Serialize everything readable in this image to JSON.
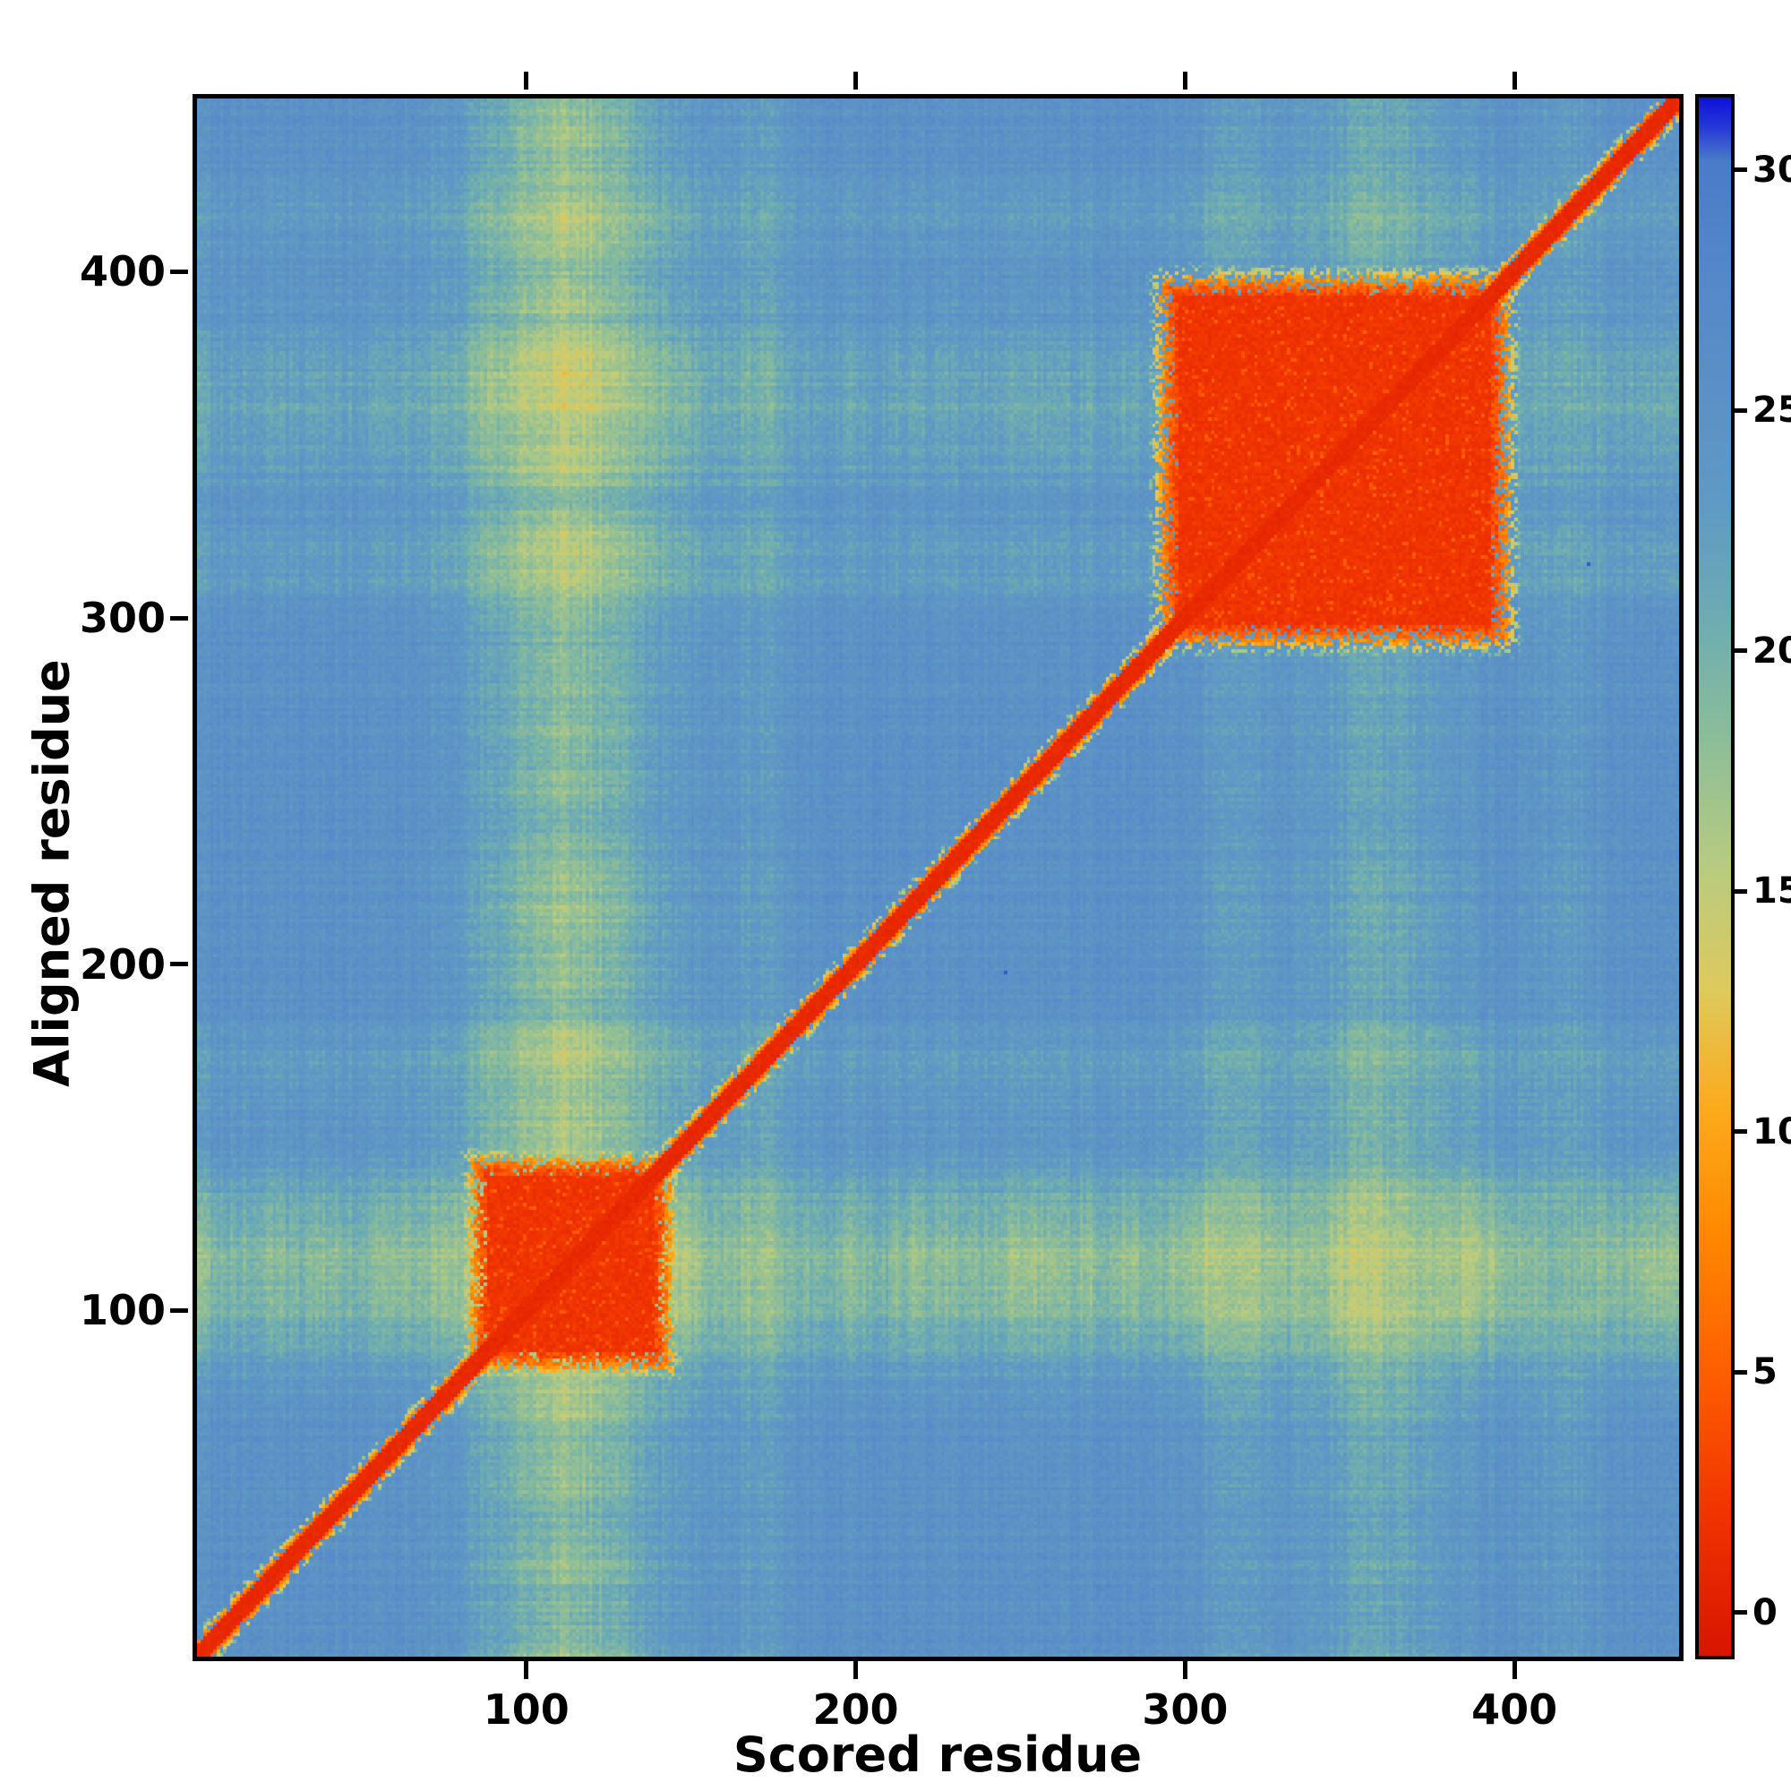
{
  "chart_data": {
    "type": "heatmap",
    "title": "",
    "xlabel": "Scored residue",
    "ylabel": "Aligned residue",
    "x_range": [
      0,
      450
    ],
    "y_range": [
      0,
      450
    ],
    "x_ticks": [
      100,
      200,
      300,
      400
    ],
    "y_ticks": [
      100,
      200,
      300,
      400
    ],
    "grid": false,
    "legend_position": "none",
    "colorbar": {
      "position": "right",
      "ticks": [
        0,
        5,
        10,
        15,
        20,
        25,
        30
      ],
      "value_top": 31.5,
      "value_bottom": -0.9
    },
    "colormap": [
      {
        "v": -0.9,
        "color": "#d81500"
      },
      {
        "v": 2.0,
        "color": "#f03300"
      },
      {
        "v": 5.0,
        "color": "#ff5e00"
      },
      {
        "v": 8.0,
        "color": "#ff8a00"
      },
      {
        "v": 10.5,
        "color": "#fcab1c"
      },
      {
        "v": 13.0,
        "color": "#ddca5e"
      },
      {
        "v": 15.5,
        "color": "#b8cb80"
      },
      {
        "v": 18.0,
        "color": "#8fbe97"
      },
      {
        "v": 20.5,
        "color": "#6fadb0"
      },
      {
        "v": 23.0,
        "color": "#5f9ac4"
      },
      {
        "v": 25.5,
        "color": "#5b90c6"
      },
      {
        "v": 28.0,
        "color": "#5487c9"
      },
      {
        "v": 30.2,
        "color": "#4a7bc8"
      },
      {
        "v": 30.9,
        "color": "#2638d8"
      },
      {
        "v": 31.5,
        "color": "#0f12d8"
      }
    ],
    "matrix": {
      "n": 450,
      "seed": 42,
      "background_value": 25.2,
      "noise": 1.1,
      "diagonal": {
        "core_half_width": 3,
        "core_value": 0.6,
        "fringe_half_width": 8
      },
      "blocks": [
        {
          "x": [
            88,
            138
          ],
          "y": [
            88,
            138
          ],
          "value": 1.3,
          "feather": 10
        },
        {
          "x": [
            298,
            392
          ],
          "y": [
            298,
            392
          ],
          "value": 1.3,
          "feather": 11
        }
      ],
      "streaks": [
        {
          "center": 112,
          "width": 20,
          "amplitude": 8.5
        },
        {
          "center": 170,
          "width": 9,
          "amplitude": 2.5
        },
        {
          "center": 315,
          "width": 8,
          "amplitude": 3.0
        },
        {
          "center": 360,
          "width": 18,
          "amplitude": 4.5
        },
        {
          "center": 415,
          "width": 8,
          "amplitude": 2.5
        }
      ],
      "streak_cap": 11
    }
  }
}
